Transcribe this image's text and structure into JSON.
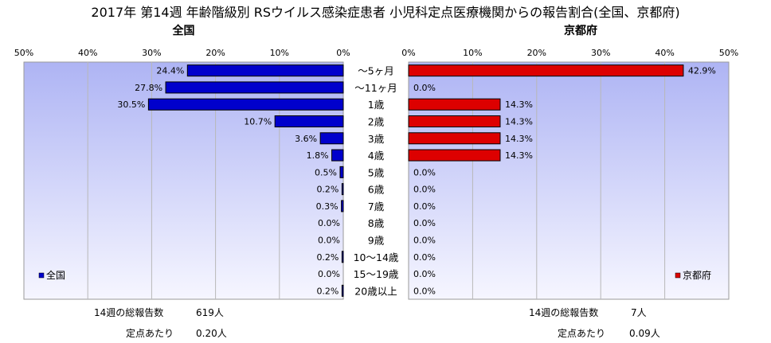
{
  "title": "2017年 第14週 年齢階級別 RSウイルス感染症患者 小児科定点医療機関からの報告割合(全国、京都府)",
  "chart_data": {
    "type": "bar",
    "categories": [
      "～5ヶ月",
      "～11ヶ月",
      "1歳",
      "2歳",
      "3歳",
      "4歳",
      "5歳",
      "6歳",
      "7歳",
      "8歳",
      "9歳",
      "10～14歳",
      "15～19歳",
      "20歳以上"
    ],
    "tick_labels": [
      "0%",
      "10%",
      "20%",
      "30%",
      "40%",
      "50%"
    ],
    "xlim": [
      0,
      50
    ],
    "grid": true,
    "series": [
      {
        "name": "全国",
        "panel_title": "全国",
        "legend_label": "全国",
        "legend_position": "bottom-left",
        "direction": "reversed",
        "color": "#0000cc",
        "values": [
          24.4,
          27.8,
          30.5,
          10.7,
          3.6,
          1.8,
          0.5,
          0.2,
          0.3,
          0.0,
          0.0,
          0.2,
          0.0,
          0.2
        ],
        "value_labels": [
          "24.4%",
          "27.8%",
          "30.5%",
          "10.7%",
          "3.6%",
          "1.8%",
          "0.5%",
          "0.2%",
          "0.3%",
          "0.0%",
          "0.0%",
          "0.2%",
          "0.0%",
          "0.2%"
        ]
      },
      {
        "name": "京都府",
        "panel_title": "京都府",
        "legend_label": "京都府",
        "legend_position": "bottom-right",
        "direction": "normal",
        "color": "#dd0000",
        "values": [
          42.9,
          0.0,
          14.3,
          14.3,
          14.3,
          14.3,
          0.0,
          0.0,
          0.0,
          0.0,
          0.0,
          0.0,
          0.0,
          0.0
        ],
        "value_labels": [
          "42.9%",
          "0.0%",
          "14.3%",
          "14.3%",
          "14.3%",
          "14.3%",
          "0.0%",
          "0.0%",
          "0.0%",
          "0.0%",
          "0.0%",
          "0.0%",
          "0.0%",
          "0.0%"
        ]
      }
    ]
  },
  "colors": {
    "plot_gradient_top": "#aeb4f4",
    "plot_gradient_bottom": "#f6f6ff",
    "bar_outline": "#000000"
  },
  "footer": {
    "national": {
      "total_label": "14週の総報告数",
      "total_value": "619人",
      "per_site_label": "定点あたり",
      "per_site_value": "0.20人"
    },
    "kyoto": {
      "total_label": "14週の総報告数",
      "total_value": "7人",
      "per_site_label": "定点あたり",
      "per_site_value": "0.09人"
    }
  }
}
